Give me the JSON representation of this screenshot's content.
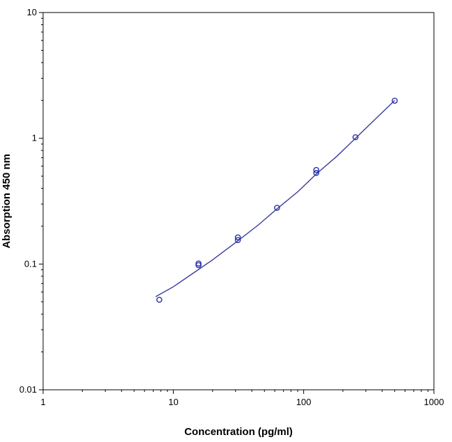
{
  "chart_data": {
    "type": "scatter",
    "xlabel": "Concentration (pg/ml)",
    "ylabel": "Absorption 450 nm",
    "x_scale": "log",
    "y_scale": "log",
    "xlim": [
      1,
      1000
    ],
    "ylim": [
      0.01,
      10
    ],
    "x_ticks": [
      "1",
      "10",
      "100",
      "1000"
    ],
    "y_ticks": [
      "0.01",
      "0.1",
      "1",
      "10"
    ],
    "grid": false,
    "legend": "none",
    "points": [
      {
        "x": 7.8,
        "y": [
          0.052
        ]
      },
      {
        "x": 15.6,
        "y": [
          0.098,
          0.101
        ]
      },
      {
        "x": 31.25,
        "y": [
          0.155,
          0.163
        ]
      },
      {
        "x": 62.5,
        "y": [
          0.28
        ]
      },
      {
        "x": 125,
        "y": [
          0.53,
          0.56
        ]
      },
      {
        "x": 250,
        "y": [
          1.02
        ]
      },
      {
        "x": 500,
        "y": [
          1.99
        ]
      }
    ],
    "fit_curve": {
      "x": [
        7.3,
        10,
        15,
        20,
        30,
        45,
        62.5,
        90,
        125,
        180,
        250,
        350,
        500
      ],
      "y": [
        0.055,
        0.066,
        0.088,
        0.108,
        0.148,
        0.205,
        0.275,
        0.375,
        0.52,
        0.72,
        1.0,
        1.4,
        2.0
      ]
    },
    "colors": {
      "marker": "#2a2fa8",
      "curve": "#3a3a9a",
      "axis": "#000000"
    }
  }
}
